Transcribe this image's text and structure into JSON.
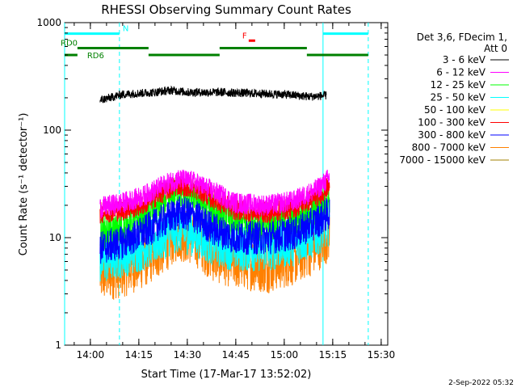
{
  "chart_data": {
    "type": "line",
    "title": "RHESSI Observing Summary Count Rates",
    "xlabel": "Start Time (17-Mar-17 13:52:02)",
    "ylabel": "Count Rate (s⁻¹ detector⁻¹)",
    "yscale": "log",
    "ylim": [
      1,
      1000
    ],
    "xlim": [
      "13:52:02",
      "15:32:02"
    ],
    "x_ticks": [
      "14:00",
      "14:15",
      "14:30",
      "14:45",
      "15:00",
      "15:15",
      "15:30"
    ],
    "y_ticks": [
      "1",
      "10",
      "100",
      "1000"
    ],
    "legend_header": [
      "Det 3,6, FDecim 1,",
      "Att 0"
    ],
    "legend_position": "right",
    "timestamp": "2-Sep-2022 05:32",
    "series": [
      {
        "name": "3 - 6 keV",
        "color": "#000000",
        "x": [
          "14:03",
          "14:10",
          "14:20",
          "14:25",
          "14:30",
          "14:40",
          "14:50",
          "15:00",
          "15:08",
          "15:13"
        ],
        "y": [
          190,
          215,
          225,
          235,
          225,
          225,
          220,
          215,
          205,
          210
        ]
      },
      {
        "name": "6 - 12 keV",
        "color": "#ff00ff",
        "x": [
          "14:03",
          "14:10",
          "14:16",
          "14:22",
          "14:27",
          "14:32",
          "14:38",
          "14:45",
          "14:55",
          "15:03",
          "15:10",
          "15:14"
        ],
        "y": [
          19,
          21,
          24,
          30,
          35,
          33,
          27,
          21,
          20,
          22,
          28,
          36
        ]
      },
      {
        "name": "12 - 25 keV",
        "color": "#00ff00",
        "x": [
          "14:03",
          "14:10",
          "14:16",
          "14:22",
          "14:27",
          "14:32",
          "14:38",
          "14:45",
          "14:55",
          "15:03",
          "15:10",
          "15:14"
        ],
        "y": [
          11,
          12,
          15,
          20,
          27,
          24,
          18,
          14,
          13,
          15,
          19,
          24
        ]
      },
      {
        "name": "25 - 50 keV",
        "color": "#00ffff",
        "x": [
          "14:03",
          "14:10",
          "14:16",
          "14:22",
          "14:27",
          "14:32",
          "14:38",
          "14:45",
          "14:55",
          "15:03",
          "15:10",
          "15:14"
        ],
        "y": [
          6,
          7,
          8,
          10,
          12,
          11,
          9,
          8,
          8,
          9,
          11,
          14
        ]
      },
      {
        "name": "50 - 100 keV",
        "color": "#ffff00",
        "x": [],
        "y": []
      },
      {
        "name": "100 - 300 keV",
        "color": "#ff0000",
        "x": [
          "14:03",
          "14:10",
          "14:16",
          "14:22",
          "14:27",
          "14:32",
          "14:38",
          "14:45",
          "14:55",
          "15:03",
          "15:10",
          "15:14"
        ],
        "y": [
          17,
          18,
          20,
          26,
          31,
          29,
          23,
          18,
          17,
          19,
          24,
          30
        ]
      },
      {
        "name": "300 - 800 keV",
        "color": "#0000ff",
        "x": [
          "14:03",
          "14:10",
          "14:16",
          "14:22",
          "14:27",
          "14:32",
          "14:38",
          "14:45",
          "14:55",
          "15:03",
          "15:10",
          "15:14"
        ],
        "y": [
          8,
          9,
          11,
          14,
          17,
          16,
          12,
          10,
          10,
          11,
          14,
          17
        ]
      },
      {
        "name": "800 - 7000 keV",
        "color": "#ff8000",
        "x": [
          "14:03",
          "14:10",
          "14:16",
          "14:22",
          "14:27",
          "14:32",
          "14:38",
          "14:45",
          "14:55",
          "15:03",
          "15:10",
          "15:14"
        ],
        "y": [
          4.5,
          5,
          6,
          8,
          11,
          10,
          7,
          6,
          5.5,
          6.5,
          8.5,
          11
        ]
      },
      {
        "name": "7000 - 15000 keV",
        "color": "#a08000",
        "x": [],
        "y": []
      }
    ],
    "vlines": [
      {
        "x": "13:52:02",
        "style": "solid",
        "color": "#00ffff"
      },
      {
        "x": "14:09",
        "style": "dashed",
        "color": "#00ffff"
      },
      {
        "x": "15:12",
        "style": "solid",
        "color": "#00ffff"
      },
      {
        "x": "15:26",
        "style": "dashed",
        "color": "#00ffff"
      }
    ],
    "flags": [
      {
        "label": "N",
        "color": "#00ffff",
        "segments": [
          [
            "13:52:02",
            "14:09"
          ],
          [
            "15:12",
            "15:26"
          ]
        ],
        "level": 790
      },
      {
        "label": "RD0",
        "color": "#008000",
        "segments": [
          [
            "13:56",
            "14:18"
          ],
          [
            "14:40",
            "15:07"
          ]
        ],
        "level": 580
      },
      {
        "label": "RD6",
        "color": "#008000",
        "segments": [
          [
            "13:52:02",
            "13:56"
          ],
          [
            "14:18",
            "14:40"
          ],
          [
            "15:07",
            "15:26"
          ]
        ],
        "level": 500
      },
      {
        "label": "F",
        "color": "#ff0000",
        "segments": [
          [
            "14:49",
            "14:51"
          ]
        ],
        "level": 680
      }
    ]
  }
}
